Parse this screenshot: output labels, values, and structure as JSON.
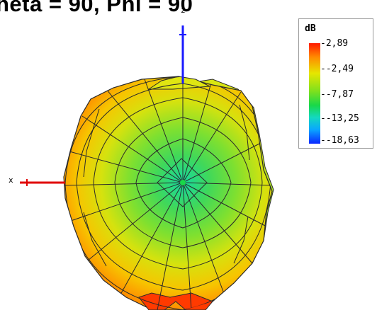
{
  "title": "heta = 90, Phi = 90",
  "axes": {
    "x_label": "x",
    "z_label": "z"
  },
  "legend": {
    "unit": "dB",
    "ticks": [
      "2,89",
      "-2,49",
      "-7,87",
      "-13,25",
      "-18,63"
    ]
  },
  "colors": {
    "x_axis": "#e00000",
    "z_axis": "#1a1aff",
    "mesh_line": "#2a2a2a",
    "color_max": "#ff1a00",
    "color_min": "#0a28ff"
  },
  "chart_data": {
    "type": "heatmap",
    "title": "heta = 90, Phi = 90",
    "colorbar": {
      "unit": "dB",
      "max": 2.89,
      "min": -18.63,
      "tick_labels": [
        "2,89",
        "-2,49",
        "-7,87",
        "-13,25",
        "-18,63"
      ]
    },
    "axes_shown": [
      "x",
      "z"
    ],
    "grid": false,
    "legend_placement": "top-right"
  }
}
